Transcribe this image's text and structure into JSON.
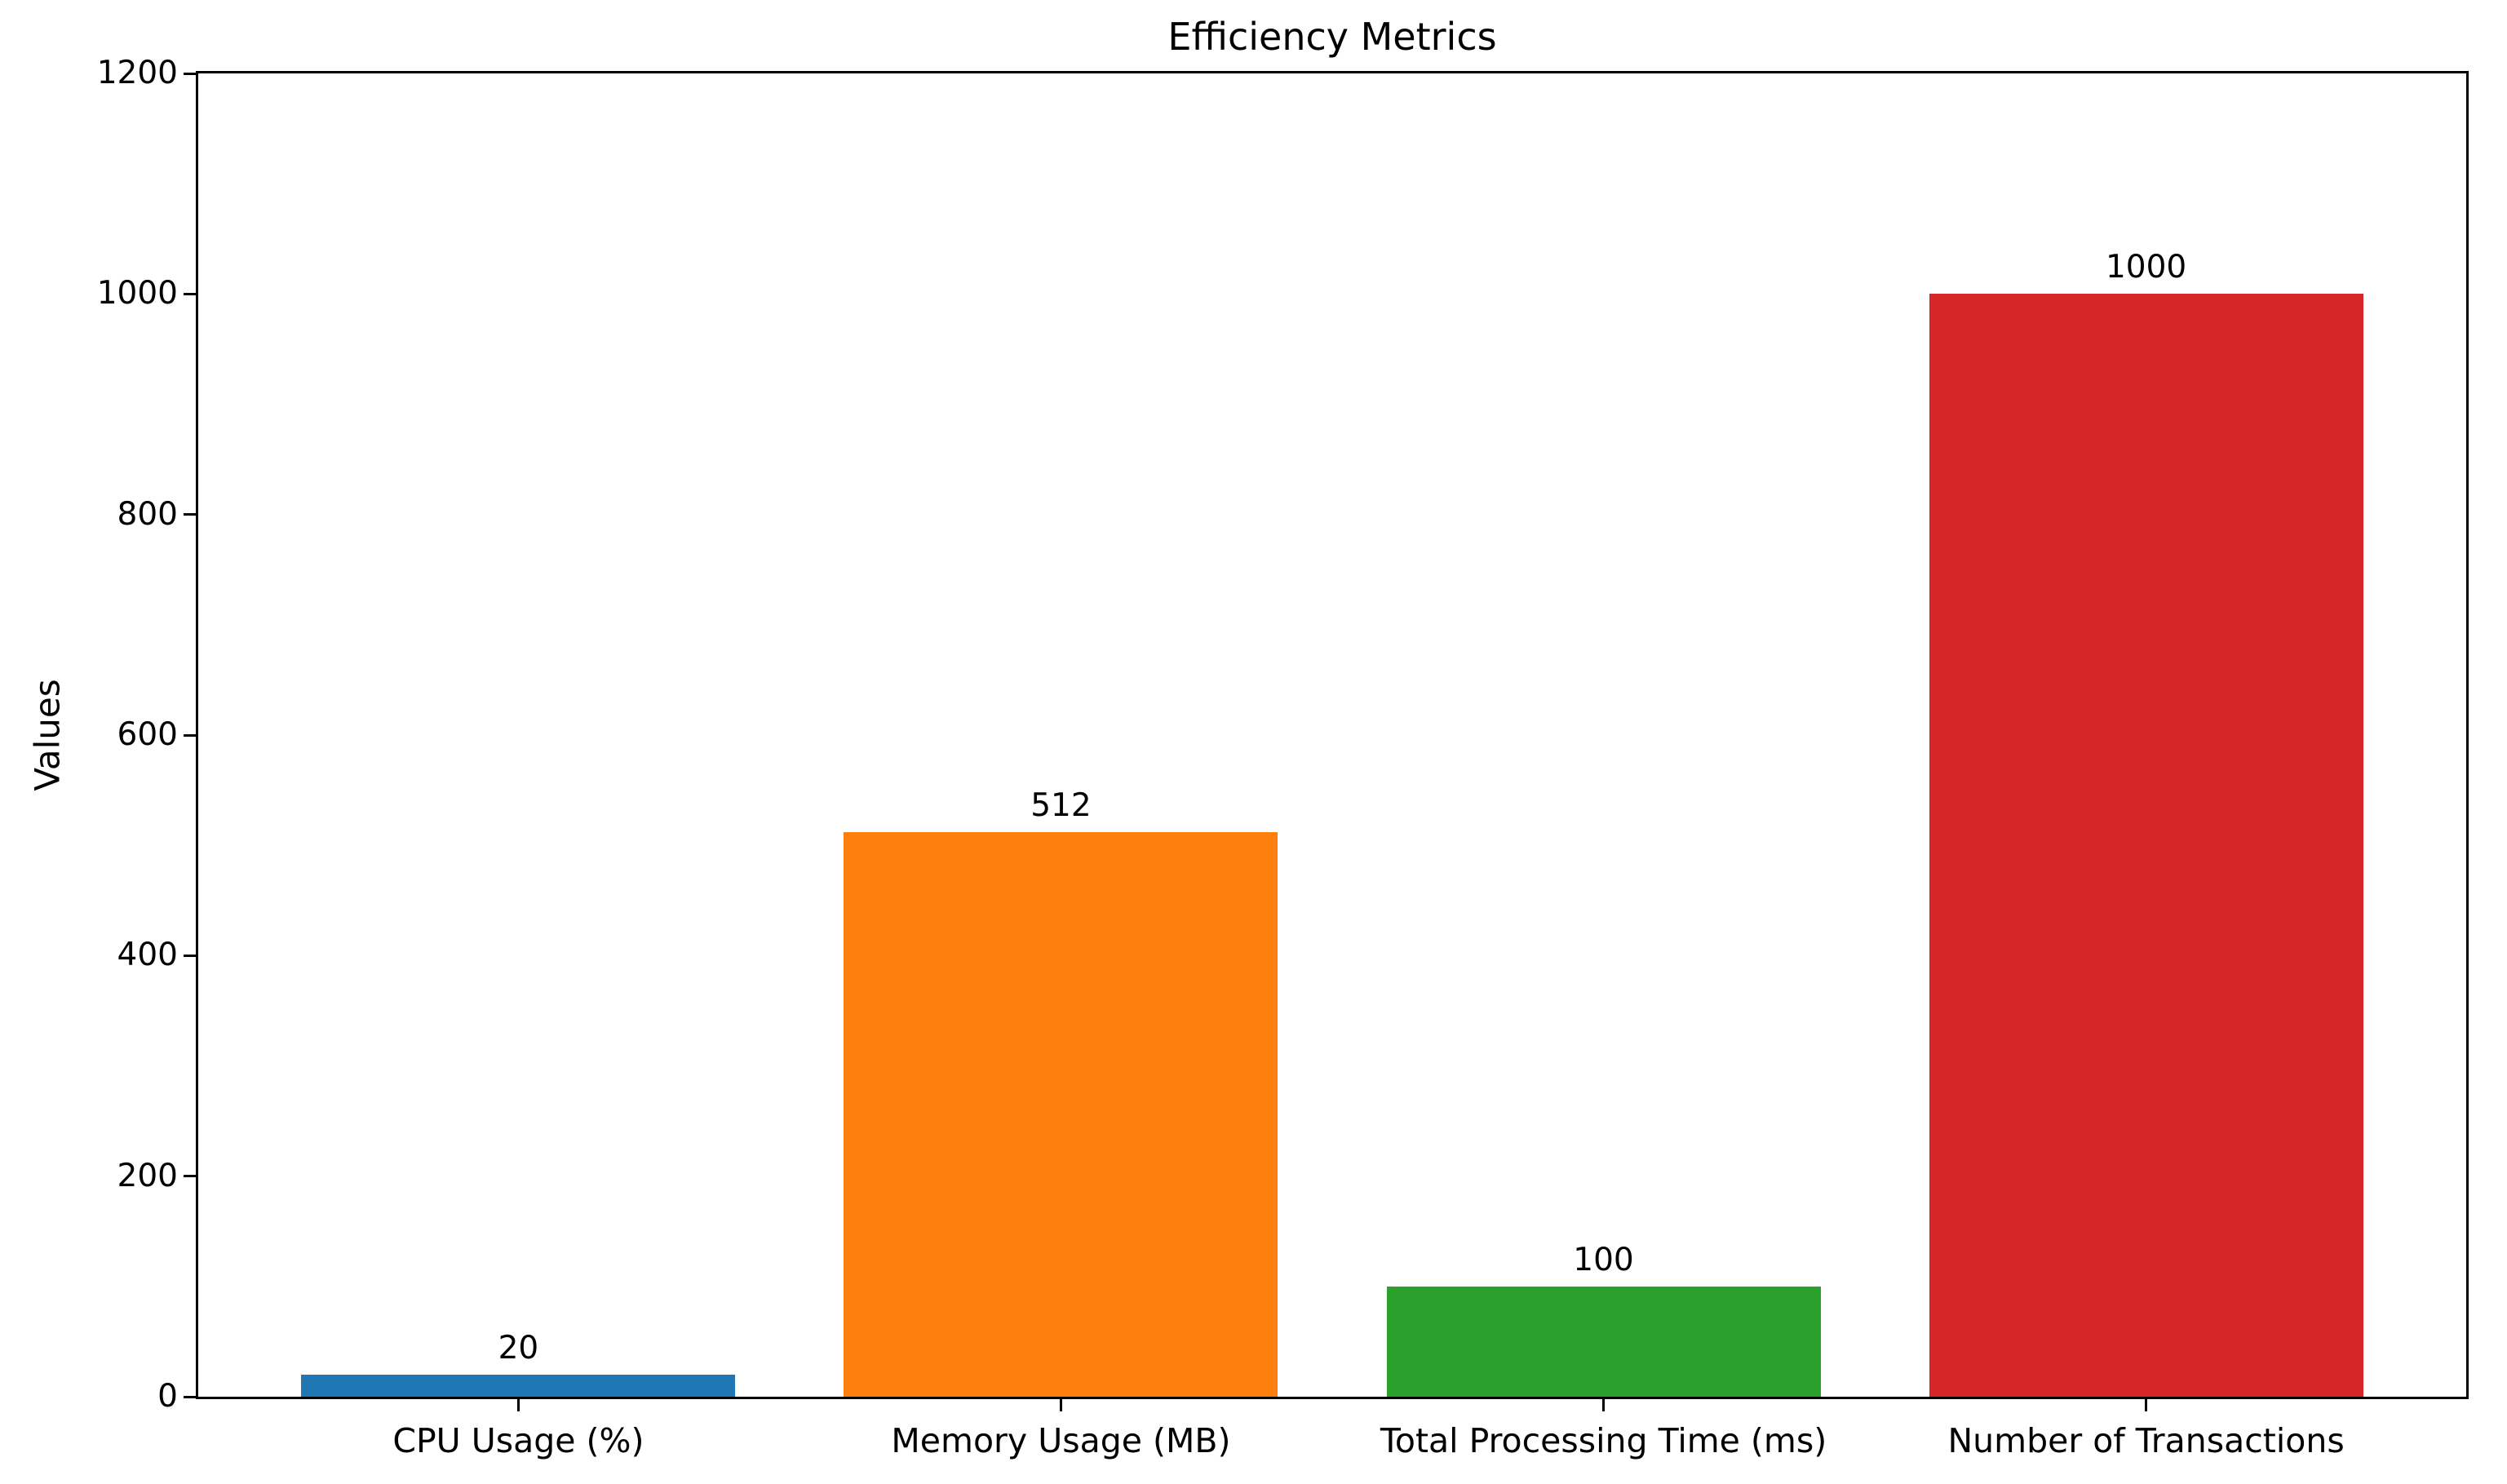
{
  "chart_data": {
    "type": "bar",
    "title": "Efficiency Metrics",
    "xlabel": "",
    "ylabel": "Values",
    "categories": [
      "CPU Usage (%)",
      "Memory Usage (MB)",
      "Total Processing Time (ms)",
      "Number of Transactions"
    ],
    "values": [
      20,
      512,
      100,
      1000
    ],
    "bar_labels": [
      "20",
      "512",
      "100",
      "1000"
    ],
    "bar_colors": [
      "#1f77b4",
      "#ff7f0e",
      "#2ca02c",
      "#d62728"
    ],
    "ylim": [
      0,
      1200
    ],
    "yticks": [
      0,
      200,
      400,
      600,
      800,
      1000,
      1200
    ],
    "ytick_labels": [
      "0",
      "200",
      "400",
      "600",
      "800",
      "1000",
      "1200"
    ],
    "grid": false,
    "legend_position": "none",
    "bar_width_fraction": 0.8
  },
  "colors": {
    "background": "#ffffff",
    "spine": "#000000",
    "text": "#000000"
  }
}
